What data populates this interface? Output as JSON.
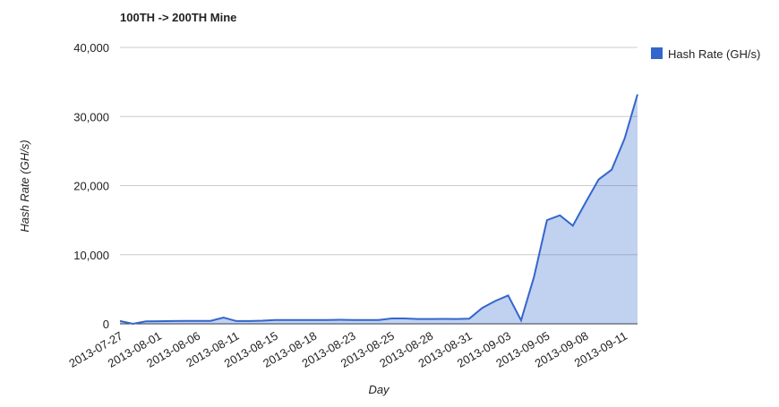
{
  "chart_data": {
    "type": "area",
    "title": "100TH -> 200TH Mine",
    "x_label": "Day",
    "y_label": "Hash Rate (GH/s)",
    "categories": [
      "2013-07-27",
      null,
      null,
      "2013-08-01",
      null,
      null,
      "2013-08-06",
      null,
      null,
      "2013-08-11",
      null,
      null,
      "2013-08-15",
      null,
      null,
      "2013-08-18",
      null,
      null,
      "2013-08-23",
      null,
      null,
      "2013-08-25",
      null,
      null,
      "2013-08-28",
      null,
      null,
      "2013-08-31",
      null,
      null,
      "2013-09-03",
      null,
      null,
      "2013-09-05",
      null,
      null,
      "2013-09-08",
      null,
      null,
      "2013-09-11",
      null
    ],
    "series": [
      {
        "name": "Hash Rate (GH/s)",
        "color": "#3366cc",
        "values": [
          400,
          0,
          350,
          380,
          400,
          420,
          420,
          420,
          900,
          400,
          400,
          450,
          550,
          550,
          550,
          550,
          550,
          580,
          550,
          550,
          550,
          780,
          780,
          700,
          700,
          720,
          700,
          750,
          2300,
          3300,
          4100,
          500,
          6800,
          15000,
          15700,
          14200,
          17600,
          20900,
          22300,
          26800,
          33200
        ]
      }
    ],
    "ylim": [
      0,
      40000
    ],
    "yticks": [
      {
        "value": 0,
        "label": "0"
      },
      {
        "value": 10000,
        "label": "10,000"
      },
      {
        "value": 20000,
        "label": "20,000"
      },
      {
        "value": 30000,
        "label": "30,000"
      },
      {
        "value": 40000,
        "label": "40,000"
      }
    ],
    "grid": true,
    "legend": "right"
  }
}
